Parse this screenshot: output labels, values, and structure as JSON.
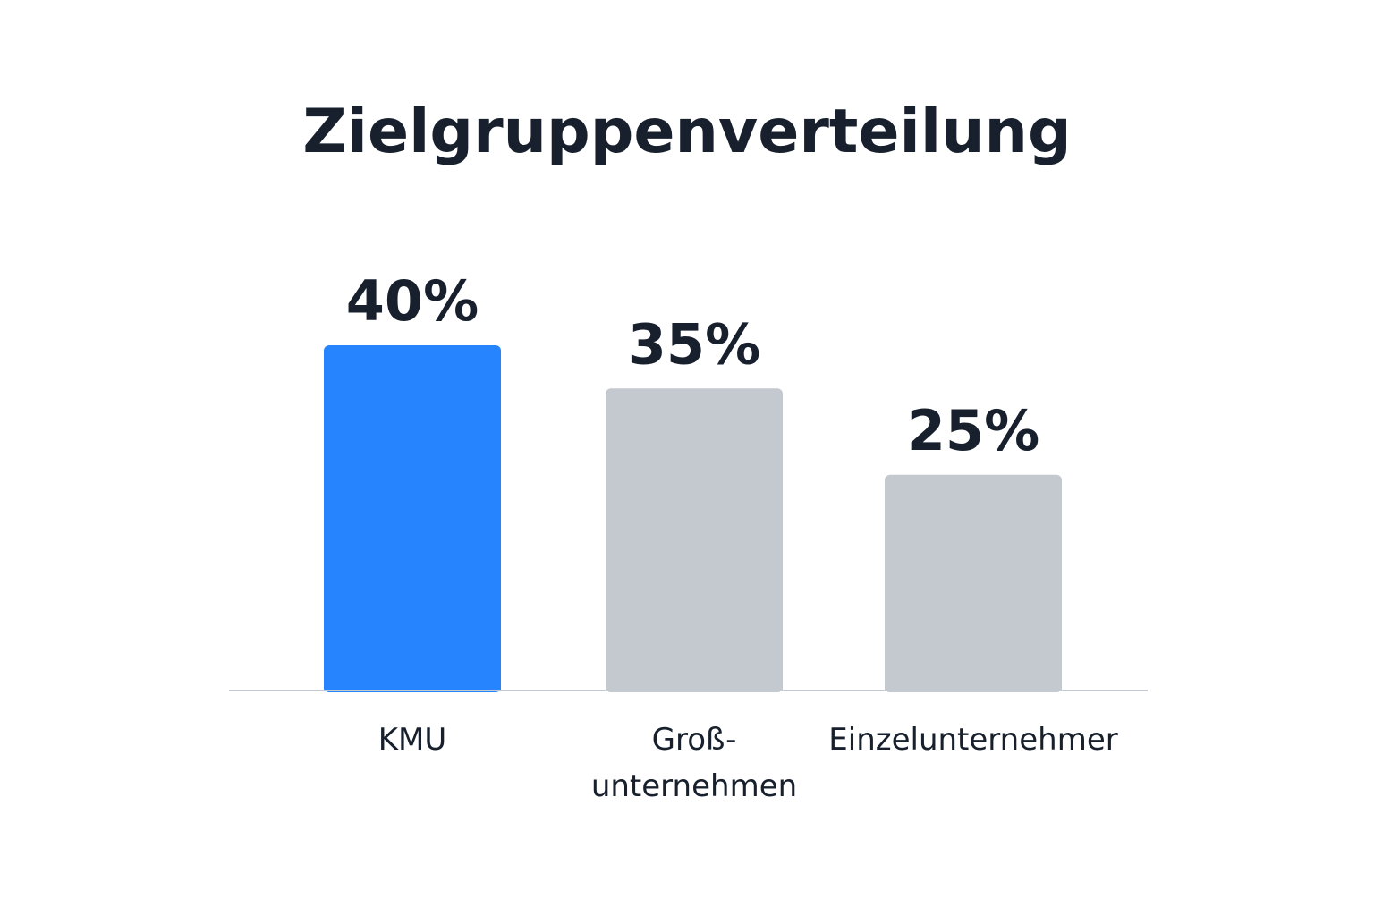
{
  "chart_data": {
    "type": "bar",
    "title": "Zielgruppenverteilung",
    "categories": [
      "KMU",
      "Groß-\nunternehmen",
      "Einzelunternehmer"
    ],
    "values": [
      40,
      35,
      25
    ],
    "value_labels": [
      "40%",
      "35%",
      "25%"
    ],
    "ylim": [
      0,
      40
    ],
    "grid": false,
    "colors": {
      "highlight": "#2684ff",
      "default": "#c4c8cf",
      "baseline": "#c4c8cf",
      "text": "#17202c"
    }
  }
}
